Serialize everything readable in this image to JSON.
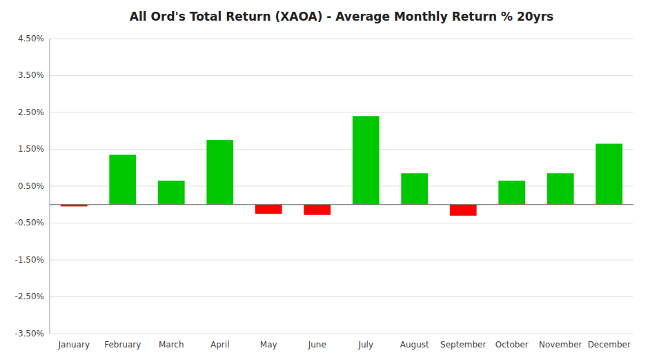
{
  "chart_data": {
    "type": "bar",
    "title": "All Ord's Total Return (XAOA) - Average Monthly Return % 20yrs",
    "categories": [
      "January",
      "February",
      "March",
      "April",
      "May",
      "June",
      "July",
      "August",
      "September",
      "October",
      "November",
      "December"
    ],
    "values": [
      -0.05,
      1.35,
      0.65,
      1.75,
      -0.25,
      -0.28,
      2.4,
      0.85,
      -0.3,
      0.65,
      0.85,
      1.65
    ],
    "colors": [
      "#ff0000",
      "#00c800",
      "#00c800",
      "#00c800",
      "#ff0000",
      "#ff0000",
      "#00c800",
      "#00c800",
      "#ff0000",
      "#00c800",
      "#00c800",
      "#00c800"
    ],
    "ylim": [
      -3.5,
      4.5
    ],
    "yticks": [
      {
        "value": -3.5,
        "label": "-3.50%"
      },
      {
        "value": -2.5,
        "label": "-2.50%"
      },
      {
        "value": -1.5,
        "label": "-1.50%"
      },
      {
        "value": -0.5,
        "label": "-0.50%"
      },
      {
        "value": 0.5,
        "label": "0.50%"
      },
      {
        "value": 1.5,
        "label": "1.50%"
      },
      {
        "value": 2.5,
        "label": "2.50%"
      },
      {
        "value": 3.5,
        "label": "3.50%"
      },
      {
        "value": 4.5,
        "label": "4.50%"
      }
    ],
    "grid": true
  }
}
